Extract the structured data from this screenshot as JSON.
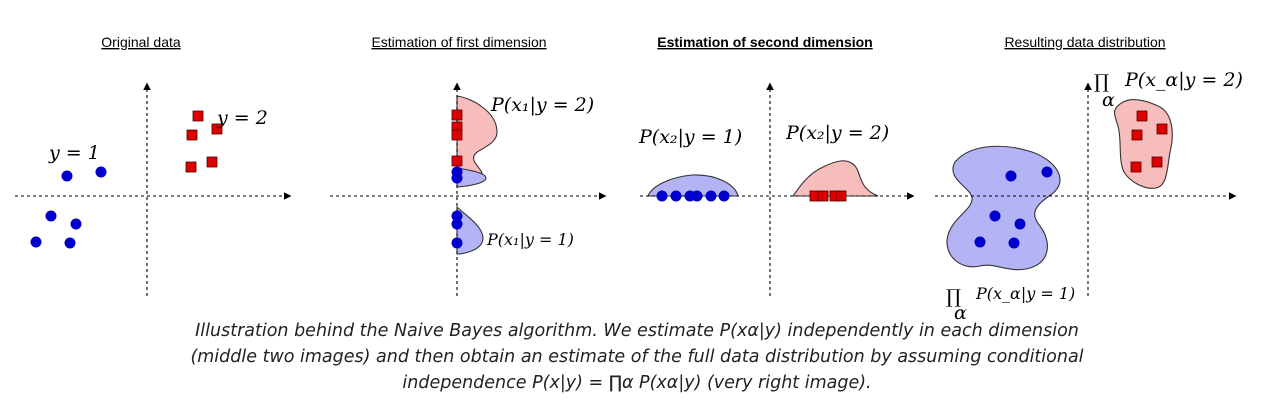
{
  "panels": [
    {
      "title": "Original data",
      "labels": {
        "class1": "y = 1",
        "class2": "y = 2"
      }
    },
    {
      "title": "Estimation of first dimension",
      "labels": {
        "upper": "P(x₁|y = 2)",
        "lower": "P(x₁|y = 1)"
      }
    },
    {
      "title": "Estimation of second dimension",
      "labels": {
        "left": "P(x₂|y = 1)",
        "right": "P(x₂|y = 2)"
      }
    },
    {
      "title": "Resulting data distribution",
      "labels": {
        "top_prod": "∏",
        "top_sub": "α",
        "top": "P(x_α|y = 2)",
        "bottom_prod": "∏",
        "bottom_sub": "α",
        "bottom": "P(x_α|y = 1)"
      }
    }
  ],
  "caption": {
    "line1": "Illustration behind the Naive Bayes algorithm. We estimate P(xα|y) independently in each dimension",
    "line2": "(middle two images) and then obtain an estimate of the full data distribution by assuming conditional",
    "line3": "independence P(x|y) = ∏α P(xα|y) (very right image)."
  },
  "colors": {
    "class1": "#0000cc",
    "class2": "#dd0000",
    "blob1": "#b3b3f5",
    "blob2": "#f7bcbc"
  }
}
